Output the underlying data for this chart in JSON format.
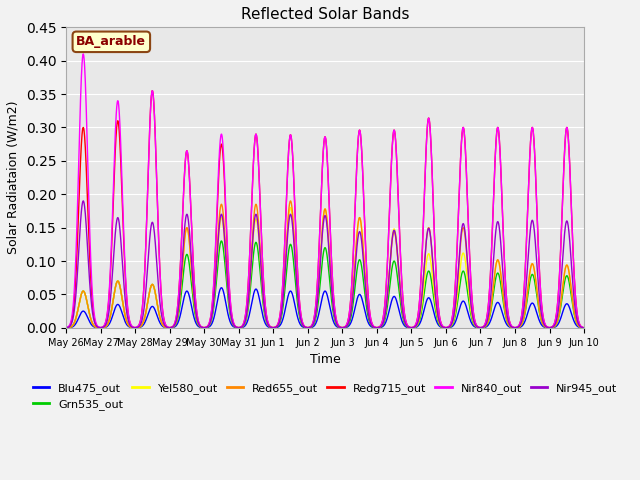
{
  "title": "Reflected Solar Bands",
  "xlabel": "Time",
  "ylabel": "Solar Radiataion (W/m2)",
  "ylim": [
    0,
    0.45
  ],
  "annotation_text": "BA_arable",
  "annotation_facecolor": "#ffffcc",
  "annotation_edgecolor": "#8B4513",
  "annotation_textcolor": "#8B0000",
  "plot_bg_color": "#e8e8e8",
  "fig_bg_color": "#f2f2f2",
  "bands": [
    {
      "label": "Blu475_out",
      "color": "#0000ff"
    },
    {
      "label": "Grn535_out",
      "color": "#00cc00"
    },
    {
      "label": "Yel580_out",
      "color": "#ffff00"
    },
    {
      "label": "Red655_out",
      "color": "#ff8800"
    },
    {
      "label": "Redg715_out",
      "color": "#ff0000"
    },
    {
      "label": "Nir840_out",
      "color": "#ff00ff"
    },
    {
      "label": "Nir945_out",
      "color": "#9900cc"
    }
  ],
  "date_labels": [
    "May 26",
    "May 27",
    "May 28",
    "May 29",
    "May 30",
    "May 31",
    "Jun 1",
    "Jun 2",
    "Jun 3",
    "Jun 4",
    "Jun 5",
    "Jun 6",
    "Jun 7",
    "Jun 8",
    "Jun 9",
    "Jun 10"
  ],
  "peaks": {
    "Blu475_out": [
      0.025,
      0.035,
      0.032,
      0.055,
      0.06,
      0.058,
      0.055,
      0.055,
      0.05,
      0.047,
      0.045,
      0.04,
      0.038,
      0.037,
      0.036
    ],
    "Grn535_out": [
      0.055,
      0.07,
      0.065,
      0.11,
      0.13,
      0.128,
      0.125,
      0.12,
      0.102,
      0.1,
      0.085,
      0.085,
      0.082,
      0.08,
      0.078
    ],
    "Yel580_out": [
      0.055,
      0.07,
      0.065,
      0.15,
      0.165,
      0.163,
      0.18,
      0.178,
      0.165,
      0.148,
      0.111,
      0.112,
      0.101,
      0.096,
      0.094
    ],
    "Red655_out": [
      0.055,
      0.07,
      0.065,
      0.15,
      0.185,
      0.185,
      0.19,
      0.178,
      0.165,
      0.144,
      0.15,
      0.15,
      0.102,
      0.096,
      0.094
    ],
    "Redg715_out": [
      0.3,
      0.31,
      0.355,
      0.265,
      0.275,
      0.29,
      0.289,
      0.286,
      0.296,
      0.296,
      0.314,
      0.3,
      0.3,
      0.3,
      0.3
    ],
    "Nir840_out": [
      0.41,
      0.34,
      0.355,
      0.265,
      0.29,
      0.29,
      0.289,
      0.286,
      0.296,
      0.296,
      0.314,
      0.3,
      0.3,
      0.3,
      0.3
    ],
    "Nir945_out": [
      0.19,
      0.165,
      0.158,
      0.17,
      0.17,
      0.17,
      0.17,
      0.168,
      0.144,
      0.146,
      0.149,
      0.156,
      0.159,
      0.161,
      0.16
    ]
  }
}
